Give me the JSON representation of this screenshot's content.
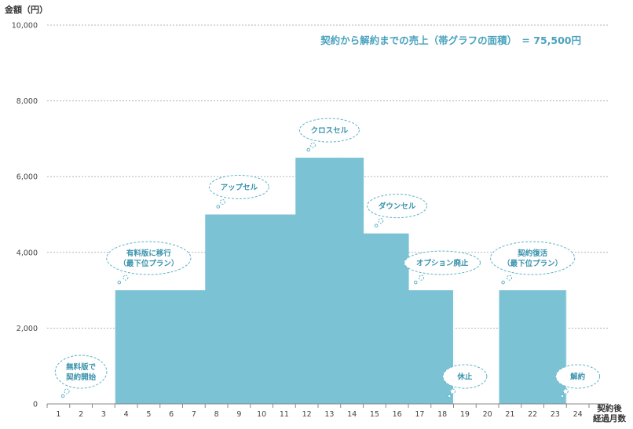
{
  "chart_data": {
    "type": "bar",
    "title": "",
    "ylabel": "金額（円）",
    "xlabel": [
      "契約後",
      "経過月数"
    ],
    "ylim": [
      0,
      10000
    ],
    "yticks": [
      "0",
      "2,000",
      "4,000",
      "6,000",
      "8,000",
      "10,000"
    ],
    "categories": [
      "1",
      "2",
      "3",
      "4",
      "5",
      "6",
      "7",
      "8",
      "9",
      "10",
      "11",
      "12",
      "13",
      "14",
      "15",
      "16",
      "17",
      "18",
      "19",
      "20",
      "21",
      "22",
      "23",
      "24"
    ],
    "values": [
      0,
      0,
      0,
      3000,
      3000,
      3000,
      3000,
      5000,
      5000,
      5000,
      5000,
      6500,
      6500,
      6500,
      4500,
      4500,
      3000,
      3000,
      0,
      0,
      3000,
      3000,
      3000,
      0
    ],
    "grid": true,
    "bar_color": "#7bc3d4",
    "annotation_total": "契約から解約までの売上（帯グラフの面積）　= 75,500円",
    "callouts": [
      {
        "month": 2,
        "lines": [
          "無料版で",
          "契約開始"
        ]
      },
      {
        "month": 5,
        "lines": [
          "有料版に移行",
          "（最下位プラン）"
        ]
      },
      {
        "month": 9,
        "lines": [
          "アップセル"
        ]
      },
      {
        "month": 13,
        "lines": [
          "クロスセル"
        ]
      },
      {
        "month": 16,
        "lines": [
          "ダウンセル"
        ]
      },
      {
        "month": 18,
        "lines": [
          "オプション廃止"
        ]
      },
      {
        "month": 19,
        "lines": [
          "休止"
        ]
      },
      {
        "month": 22,
        "lines": [
          "契約復活",
          "（最下位プラン）"
        ]
      },
      {
        "month": 24,
        "lines": [
          "解約"
        ]
      }
    ]
  }
}
